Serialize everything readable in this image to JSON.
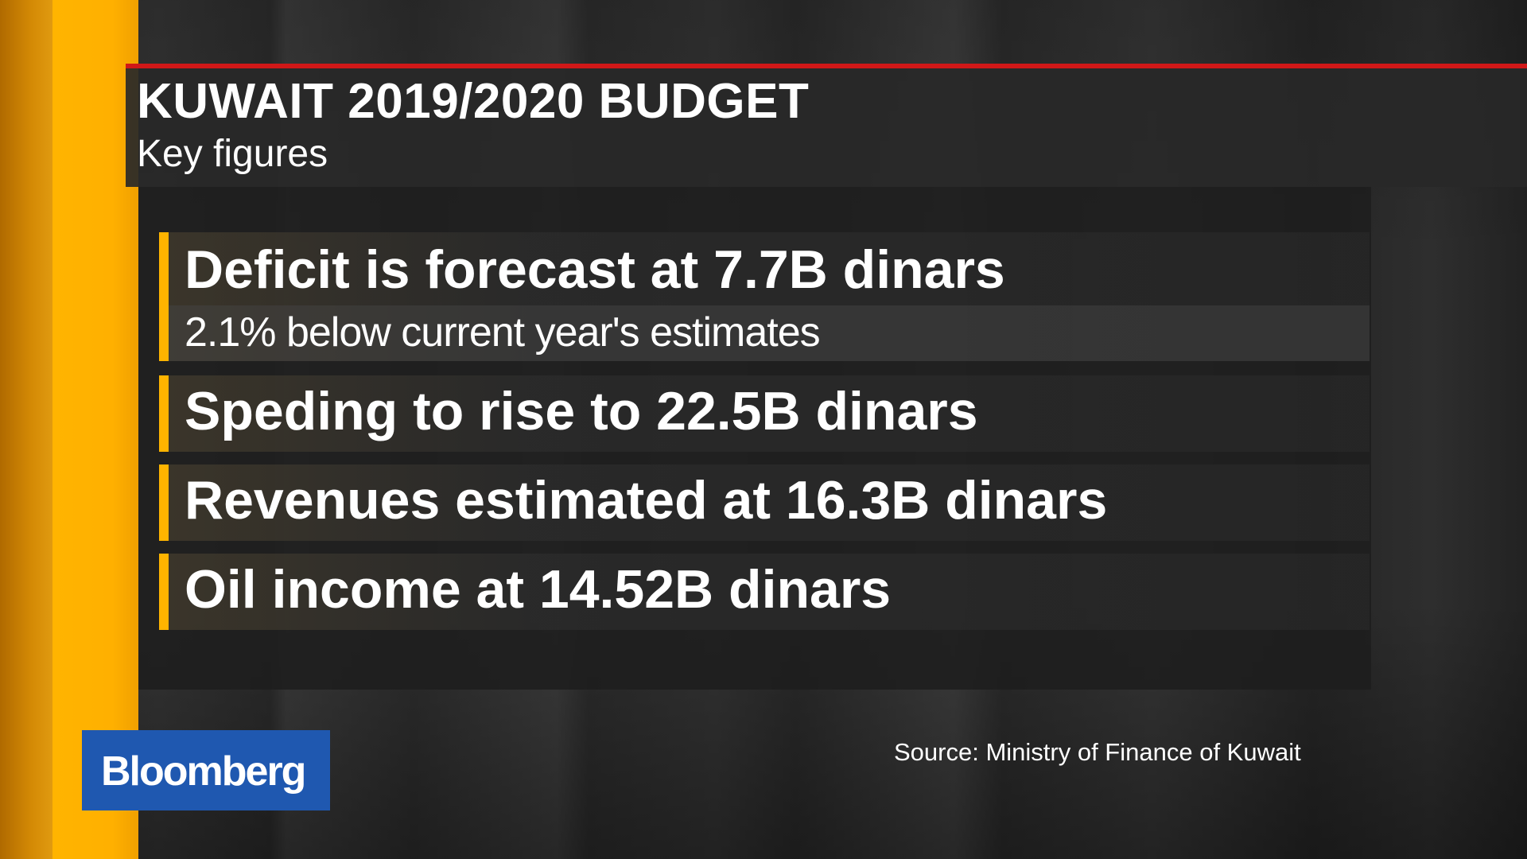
{
  "header": {
    "title": "KUWAIT 2019/2020 BUDGET",
    "subtitle": "Key figures"
  },
  "items": [
    {
      "main": "Deficit is forecast at 7.7B dinars",
      "sub": "2.1% below current year's estimates"
    },
    {
      "main": "Speding to rise to 22.5B dinars"
    },
    {
      "main": "Revenues estimated at 16.3B dinars"
    },
    {
      "main": "Oil income at 14.52B dinars"
    }
  ],
  "footer": {
    "source": "Source: Ministry of Finance of Kuwait",
    "logo": "Bloomberg"
  },
  "colors": {
    "accent_orange": "#ffb400",
    "title_rule_red": "#d01818",
    "logo_blue": "#1f58b0"
  }
}
